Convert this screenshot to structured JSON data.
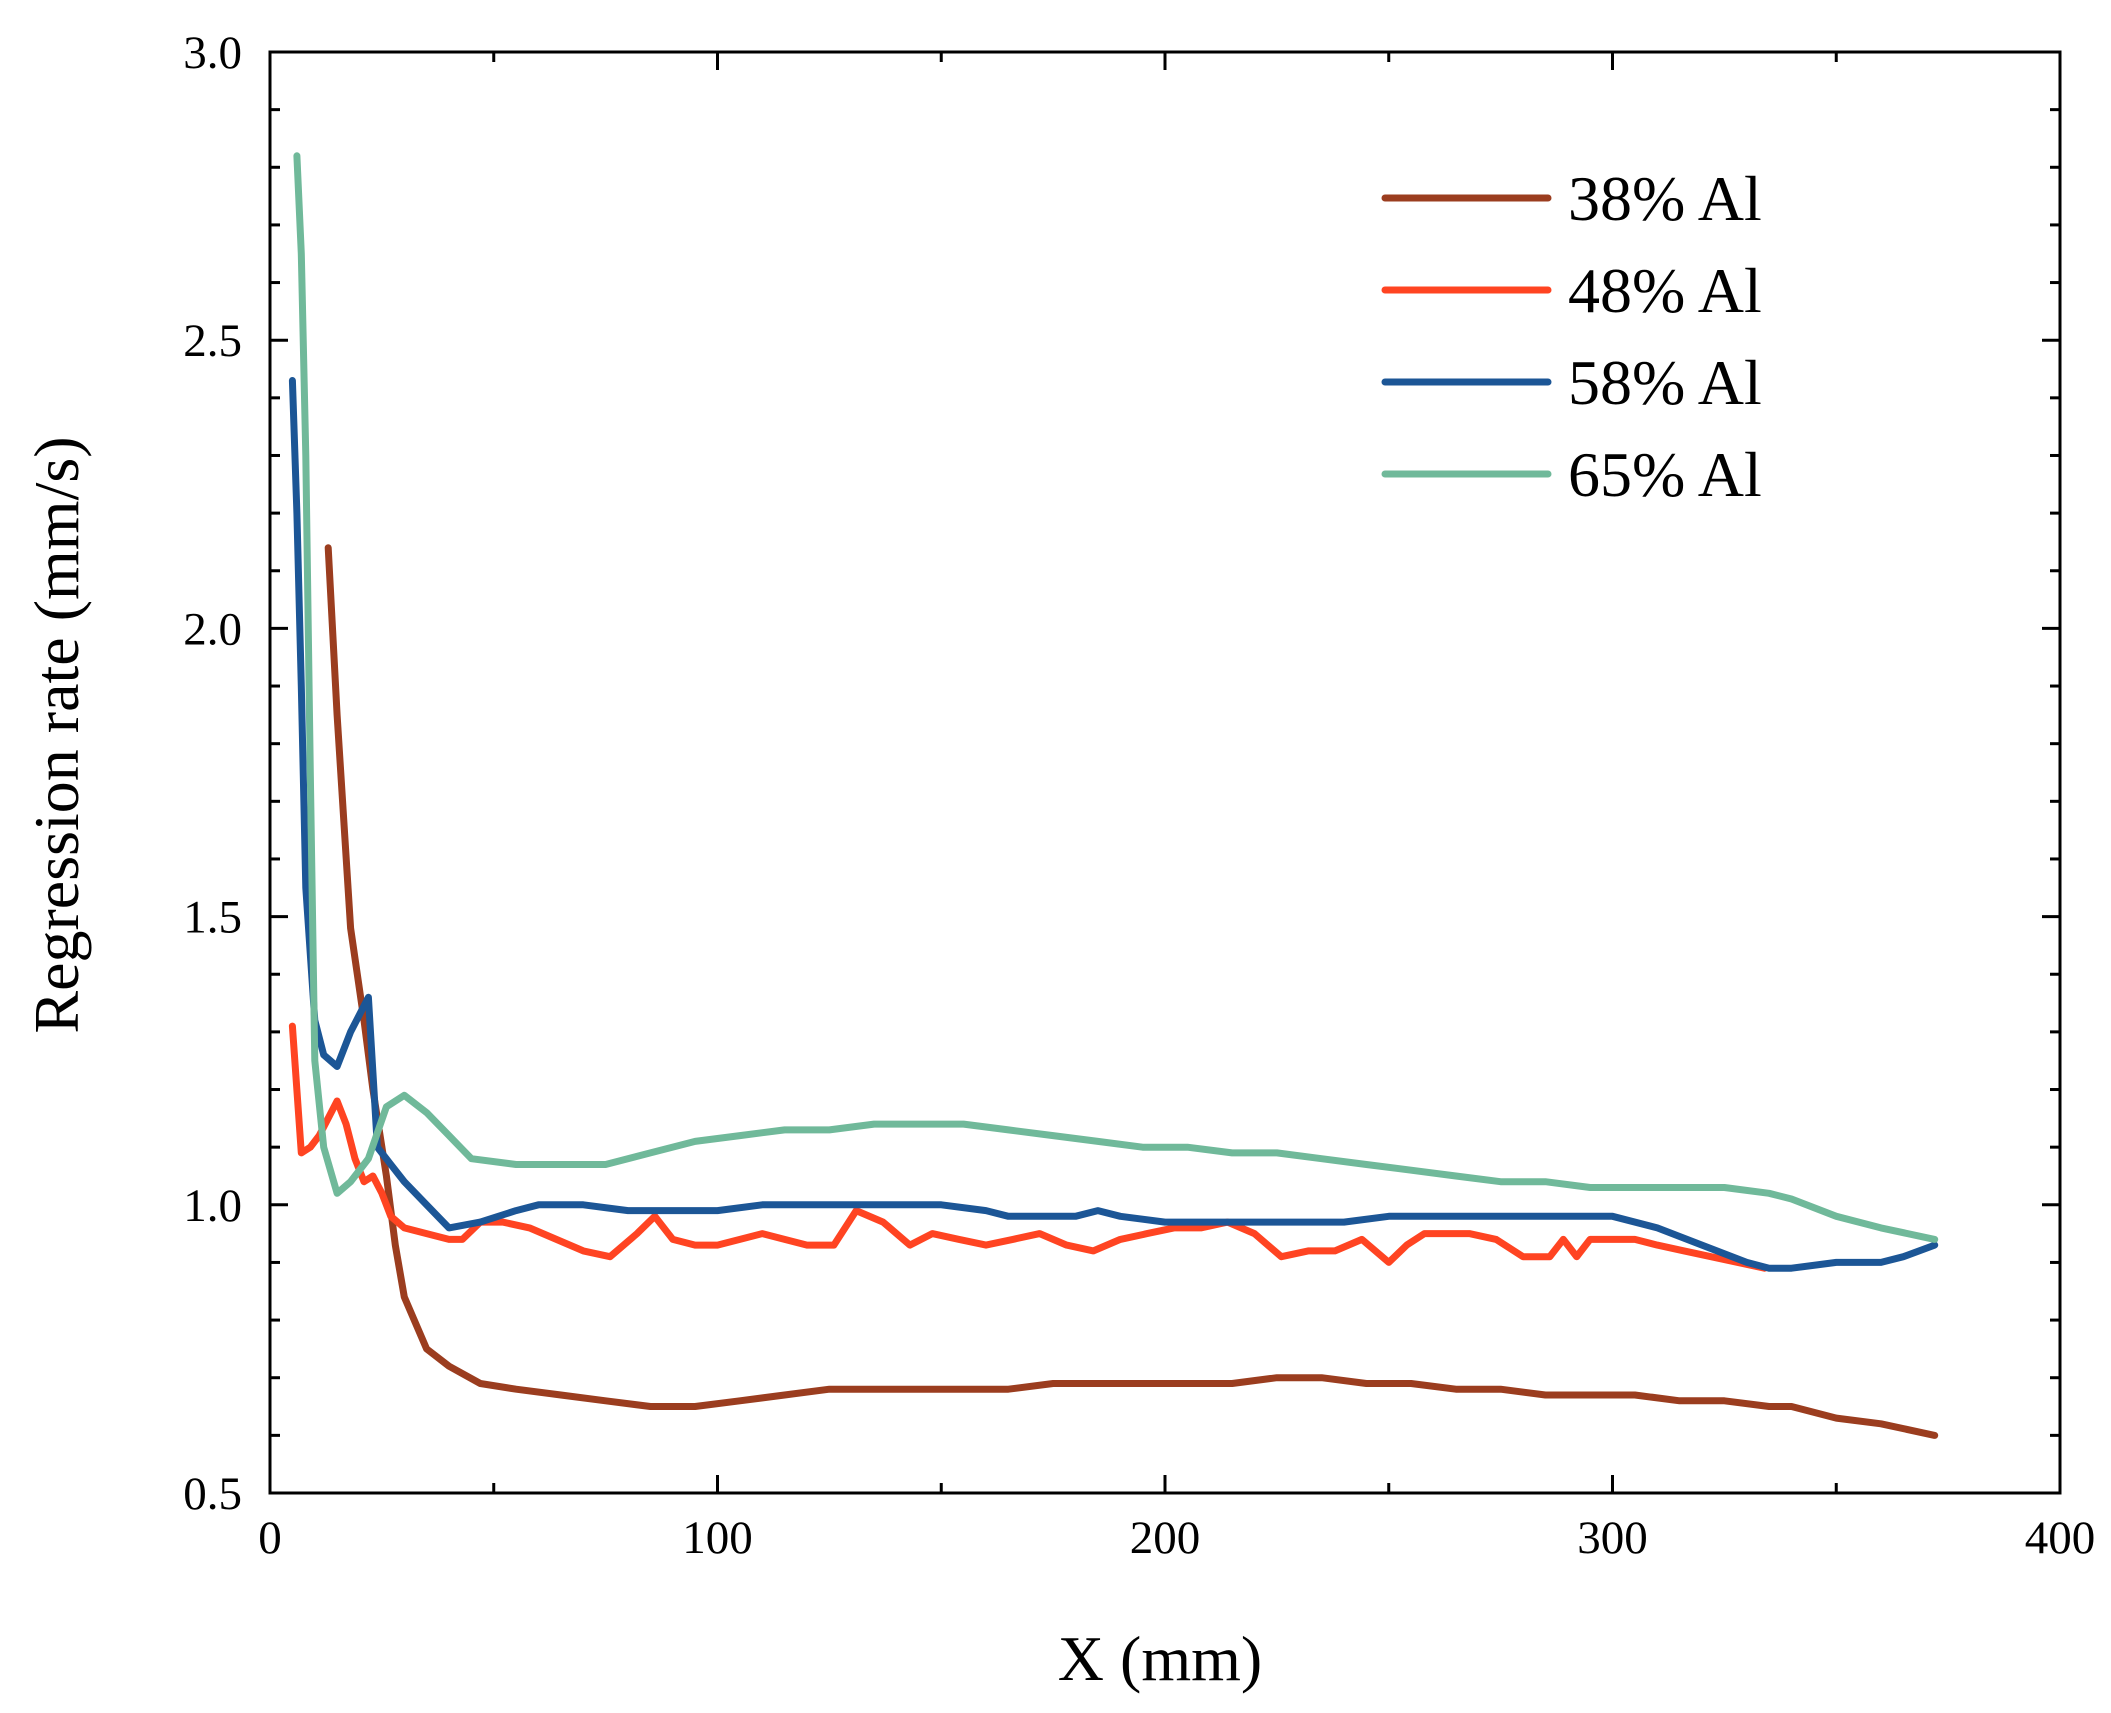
{
  "chart_data": {
    "type": "line",
    "title": "",
    "xlabel": "X (mm)",
    "ylabel": "Regression rate (mm/s)",
    "xlim": [
      0,
      400
    ],
    "ylim": [
      0.5,
      3.0
    ],
    "xticks": [
      0,
      100,
      200,
      300,
      400
    ],
    "xtick_labels": [
      "0",
      "100",
      "200",
      "300",
      "400"
    ],
    "yticks": [
      0.5,
      1.0,
      1.5,
      2.0,
      2.5,
      3.0
    ],
    "ytick_labels": [
      "0.5",
      "1.0",
      "1.5",
      "2.0",
      "2.5",
      "3.0"
    ],
    "grid": false,
    "legend_position": "top-right",
    "series": [
      {
        "name": "38% Al",
        "color": "#9b3d1f",
        "x": [
          13,
          15,
          18,
          21,
          23,
          26,
          28,
          30,
          35,
          40,
          47,
          55,
          65,
          75,
          85,
          95,
          105,
          115,
          125,
          135,
          145,
          155,
          165,
          175,
          185,
          195,
          205,
          215,
          225,
          235,
          245,
          255,
          265,
          275,
          285,
          295,
          305,
          315,
          325,
          335,
          340,
          350,
          360,
          372
        ],
        "y": [
          2.14,
          1.85,
          1.48,
          1.32,
          1.2,
          1.05,
          0.93,
          0.84,
          0.75,
          0.72,
          0.69,
          0.68,
          0.67,
          0.66,
          0.65,
          0.65,
          0.66,
          0.67,
          0.68,
          0.68,
          0.68,
          0.68,
          0.68,
          0.69,
          0.69,
          0.69,
          0.69,
          0.69,
          0.7,
          0.7,
          0.69,
          0.69,
          0.68,
          0.68,
          0.67,
          0.67,
          0.67,
          0.66,
          0.66,
          0.65,
          0.65,
          0.63,
          0.62,
          0.6
        ]
      },
      {
        "name": "48% Al",
        "color": "#ff4422",
        "x": [
          5,
          7,
          9,
          11,
          13,
          15,
          17,
          19,
          21,
          23,
          25,
          27,
          30,
          35,
          40,
          43,
          47,
          52,
          58,
          64,
          70,
          76,
          82,
          86,
          90,
          95,
          100,
          105,
          110,
          115,
          120,
          126,
          131,
          137,
          143,
          148,
          154,
          160,
          166,
          172,
          178,
          184,
          190,
          196,
          202,
          208,
          214,
          220,
          226,
          232,
          238,
          244,
          250,
          254,
          258,
          263,
          268,
          274,
          280,
          286,
          289,
          292,
          295,
          300,
          305,
          310,
          316,
          322,
          328,
          334
        ],
        "y": [
          1.31,
          1.09,
          1.1,
          1.12,
          1.15,
          1.18,
          1.14,
          1.08,
          1.04,
          1.05,
          1.02,
          0.98,
          0.96,
          0.95,
          0.94,
          0.94,
          0.97,
          0.97,
          0.96,
          0.94,
          0.92,
          0.91,
          0.95,
          0.98,
          0.94,
          0.93,
          0.93,
          0.94,
          0.95,
          0.94,
          0.93,
          0.93,
          0.99,
          0.97,
          0.93,
          0.95,
          0.94,
          0.93,
          0.94,
          0.95,
          0.93,
          0.92,
          0.94,
          0.95,
          0.96,
          0.96,
          0.97,
          0.95,
          0.91,
          0.92,
          0.92,
          0.94,
          0.9,
          0.93,
          0.95,
          0.95,
          0.95,
          0.94,
          0.91,
          0.91,
          0.94,
          0.91,
          0.94,
          0.94,
          0.94,
          0.93,
          0.92,
          0.91,
          0.9,
          0.89
        ]
      },
      {
        "name": "58% Al",
        "color": "#1c5696",
        "x": [
          5,
          6,
          7,
          8,
          10,
          12,
          15,
          18,
          20,
          22,
          24,
          27,
          30,
          35,
          40,
          47,
          55,
          60,
          70,
          80,
          90,
          100,
          110,
          120,
          130,
          140,
          150,
          160,
          165,
          170,
          180,
          185,
          190,
          200,
          210,
          220,
          230,
          240,
          250,
          260,
          270,
          280,
          290,
          300,
          310,
          320,
          330,
          335,
          340,
          350,
          360,
          365,
          372
        ],
        "y": [
          2.43,
          2.2,
          1.9,
          1.55,
          1.32,
          1.26,
          1.24,
          1.3,
          1.33,
          1.36,
          1.1,
          1.07,
          1.04,
          1.0,
          0.96,
          0.97,
          0.99,
          1.0,
          1.0,
          0.99,
          0.99,
          0.99,
          1.0,
          1.0,
          1.0,
          1.0,
          1.0,
          0.99,
          0.98,
          0.98,
          0.98,
          0.99,
          0.98,
          0.97,
          0.97,
          0.97,
          0.97,
          0.97,
          0.98,
          0.98,
          0.98,
          0.98,
          0.98,
          0.98,
          0.96,
          0.93,
          0.9,
          0.89,
          0.89,
          0.9,
          0.9,
          0.91,
          0.93
        ]
      },
      {
        "name": "65% Al",
        "color": "#70b99a",
        "x": [
          6,
          7,
          8,
          9,
          10,
          12,
          15,
          18,
          22,
          26,
          30,
          35,
          40,
          45,
          55,
          65,
          75,
          85,
          95,
          105,
          115,
          125,
          135,
          145,
          155,
          165,
          175,
          185,
          195,
          205,
          215,
          225,
          235,
          245,
          255,
          265,
          275,
          285,
          295,
          305,
          315,
          325,
          335,
          340,
          350,
          360,
          372
        ],
        "y": [
          2.82,
          2.65,
          2.3,
          1.75,
          1.25,
          1.1,
          1.02,
          1.04,
          1.08,
          1.17,
          1.19,
          1.16,
          1.12,
          1.08,
          1.07,
          1.07,
          1.07,
          1.09,
          1.11,
          1.12,
          1.13,
          1.13,
          1.14,
          1.14,
          1.14,
          1.13,
          1.12,
          1.11,
          1.1,
          1.1,
          1.09,
          1.09,
          1.08,
          1.07,
          1.06,
          1.05,
          1.04,
          1.04,
          1.03,
          1.03,
          1.03,
          1.03,
          1.02,
          1.01,
          0.98,
          0.96,
          0.94
        ]
      }
    ]
  }
}
